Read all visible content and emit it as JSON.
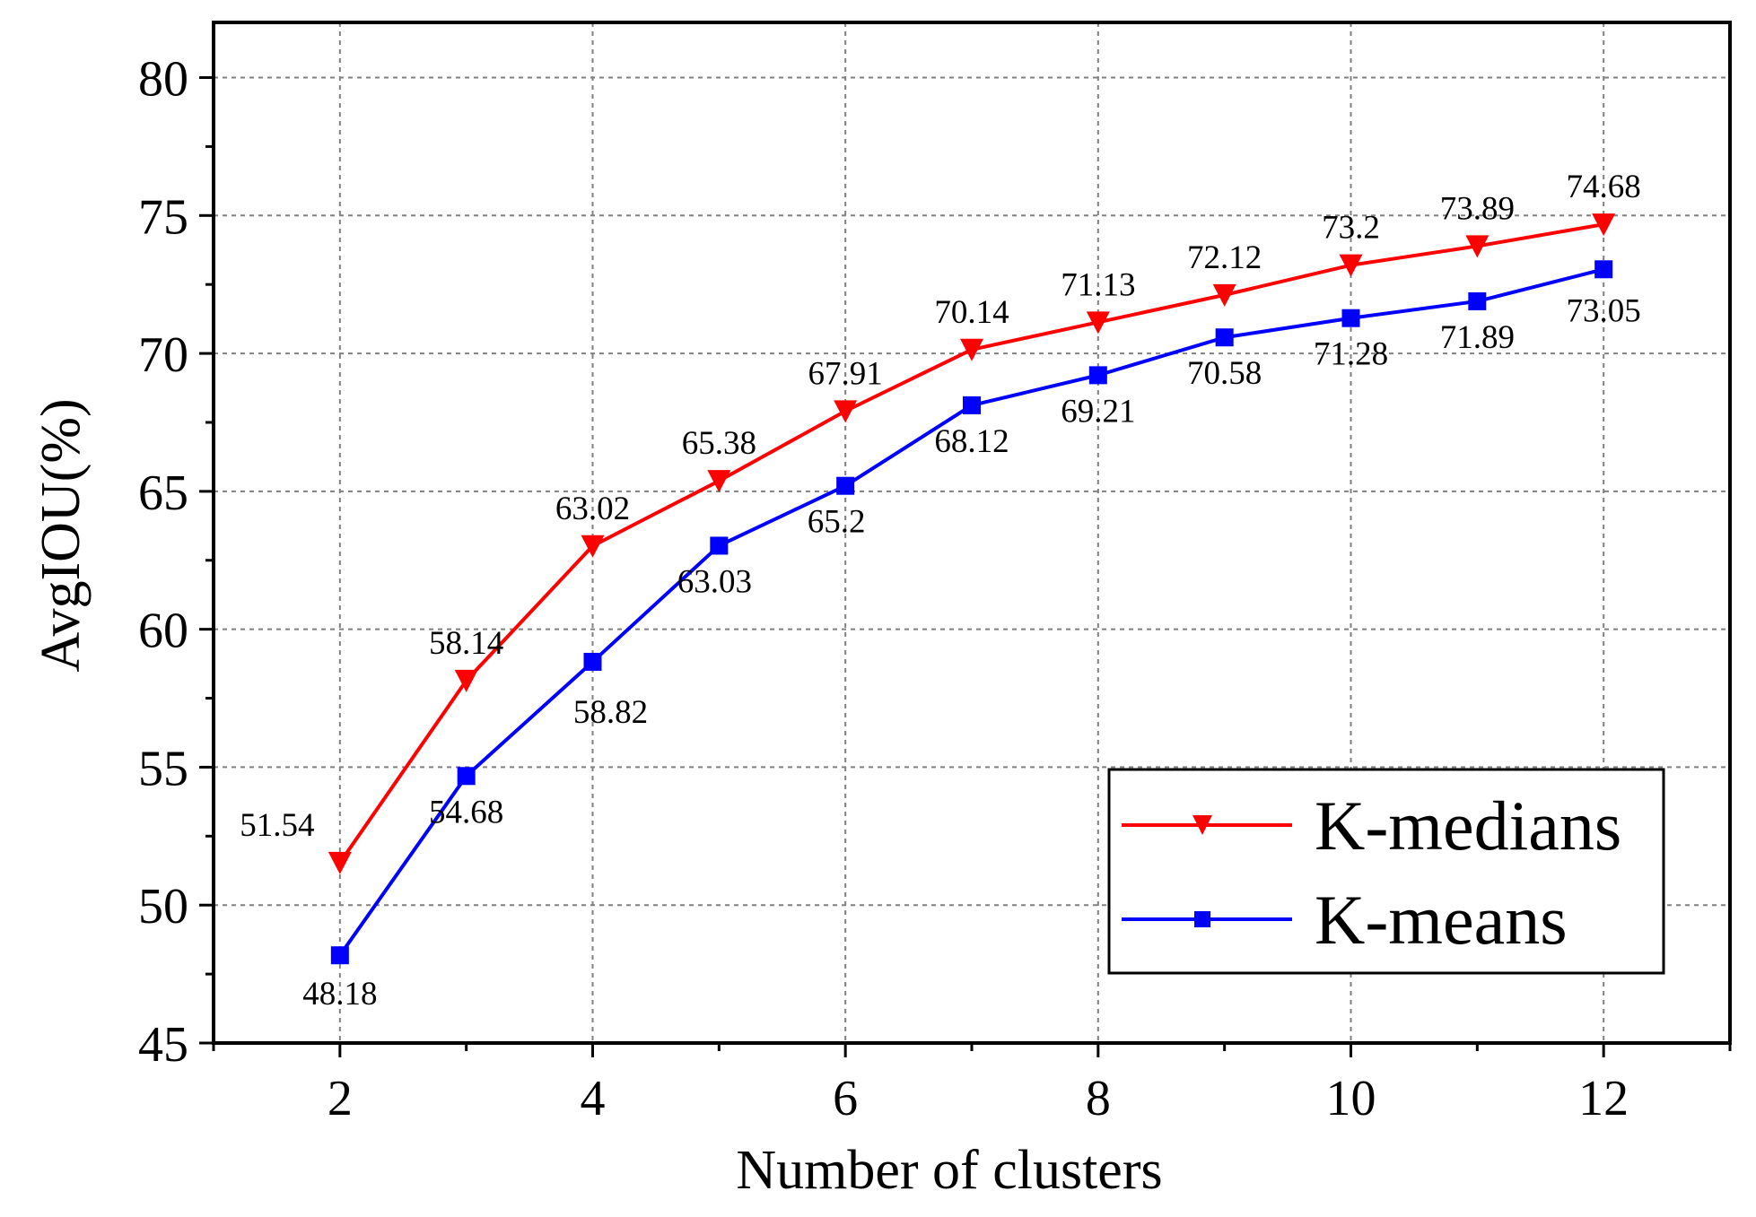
{
  "chart_data": {
    "type": "line",
    "title": "",
    "xlabel": "Number of clusters",
    "ylabel": "AvgIOU(%)",
    "xlim": [
      1,
      13
    ],
    "ylim": [
      45,
      82
    ],
    "x": [
      2,
      3,
      4,
      5,
      6,
      7,
      8,
      9,
      10,
      11,
      12
    ],
    "x_ticks": [
      "2",
      "4",
      "6",
      "8",
      "10",
      "12"
    ],
    "y_ticks": [
      "45",
      "50",
      "55",
      "60",
      "65",
      "70",
      "75",
      "80"
    ],
    "grid": true,
    "legend_position": "bottom-right",
    "series": [
      {
        "name": "K-medians",
        "color": "#ff0000",
        "marker": "triangle-down",
        "values": [
          51.54,
          58.14,
          63.02,
          65.38,
          67.91,
          70.14,
          71.13,
          72.12,
          73.2,
          73.89,
          74.68
        ],
        "labels": [
          "51.54",
          "58.14",
          "63.02",
          "65.38",
          "67.91",
          "70.14",
          "71.13",
          "72.12",
          "73.2",
          "73.89",
          "74.68"
        ]
      },
      {
        "name": "K-means",
        "color": "#0000ff",
        "marker": "square",
        "values": [
          48.18,
          54.68,
          58.82,
          63.03,
          65.2,
          68.12,
          69.21,
          70.58,
          71.28,
          71.89,
          73.05
        ],
        "labels": [
          "48.18",
          "54.68",
          "58.82",
          "63.03",
          "65.2",
          "68.12",
          "69.21",
          "70.58",
          "71.28",
          "71.89",
          "73.05"
        ]
      }
    ]
  }
}
